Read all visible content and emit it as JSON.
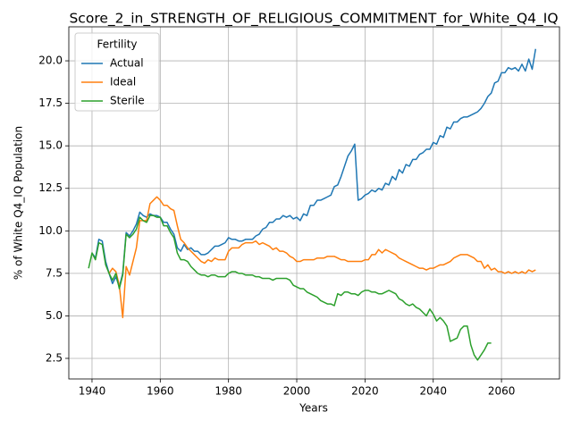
{
  "chart_data": {
    "type": "line",
    "title": "Score_2_in_STRENGTH_OF_RELIGIOUS_COMMITMENT_for_White_Q4_IQ",
    "xlabel": "Years",
    "ylabel": "% of White Q4_IQ Population",
    "legend_title": "Fertility",
    "legend": "upper left",
    "grid": true,
    "xlim": [
      1933.2,
      2077.0
    ],
    "ylim": [
      1.29,
      22.0
    ],
    "xticks": [
      1940,
      1960,
      1980,
      2000,
      2020,
      2040,
      2060
    ],
    "yticks": [
      2.5,
      {
        "value": 5,
        "label": "5.0"
      },
      7.5,
      {
        "value": 10,
        "label": "10.0"
      },
      12.5,
      {
        "value": 15,
        "label": "15.0"
      },
      17.5,
      {
        "value": 20,
        "label": "20.0"
      }
    ],
    "x": [
      1939,
      1940,
      1941,
      1942,
      1943,
      1944,
      1945,
      1946,
      1947,
      1948,
      1949,
      1950,
      1951,
      1952,
      1953,
      1954,
      1955,
      1956,
      1957,
      1958,
      1959,
      1960,
      1961,
      1962,
      1963,
      1964,
      1965,
      1966,
      1967,
      1968,
      1969,
      1970,
      1971,
      1972,
      1973,
      1974,
      1975,
      1976,
      1977,
      1978,
      1979,
      1980,
      1981,
      1982,
      1983,
      1984,
      1985,
      1986,
      1987,
      1988,
      1989,
      1990,
      1991,
      1992,
      1993,
      1994,
      1995,
      1996,
      1997,
      1998,
      1999,
      2000,
      2001,
      2002,
      2003,
      2004,
      2005,
      2006,
      2007,
      2008,
      2009,
      2010,
      2011,
      2012,
      2013,
      2014,
      2015,
      2016,
      2017,
      2018,
      2019,
      2020,
      2021,
      2022,
      2023,
      2024,
      2025,
      2026,
      2027,
      2028,
      2029,
      2030,
      2031,
      2032,
      2033,
      2034,
      2035,
      2036,
      2037,
      2038,
      2039,
      2040,
      2041,
      2042,
      2043,
      2044,
      2045,
      2046,
      2047,
      2048,
      2049,
      2050,
      2051,
      2052,
      2053,
      2054,
      2055,
      2056,
      2057,
      2058,
      2059,
      2060,
      2061,
      2062,
      2063,
      2064,
      2065,
      2066,
      2067,
      2068,
      2069,
      2070
    ],
    "series": [
      {
        "name": "Actual",
        "color": "#1f77b4",
        "values": [
          null,
          8.7,
          8.4,
          9.5,
          9.4,
          8.2,
          7.5,
          6.9,
          7.3,
          6.7,
          7.5,
          9.9,
          9.7,
          10.0,
          10.4,
          11.1,
          10.9,
          10.8,
          11.0,
          10.9,
          10.9,
          10.8,
          10.5,
          10.5,
          10.1,
          9.8,
          9.0,
          8.8,
          9.2,
          8.9,
          9.0,
          8.8,
          8.8,
          8.6,
          8.6,
          8.7,
          8.9,
          9.1,
          9.1,
          9.2,
          9.3,
          9.6,
          9.5,
          9.5,
          9.4,
          9.4,
          9.5,
          9.5,
          9.5,
          9.7,
          9.8,
          10.1,
          10.2,
          10.5,
          10.5,
          10.7,
          10.7,
          10.9,
          10.8,
          10.9,
          10.7,
          10.8,
          10.6,
          11.0,
          10.9,
          11.5,
          11.5,
          11.8,
          11.8,
          11.9,
          12.0,
          12.1,
          12.6,
          12.7,
          13.2,
          13.8,
          14.4,
          14.7,
          15.1,
          11.8,
          11.9,
          12.1,
          12.2,
          12.4,
          12.3,
          12.5,
          12.4,
          12.8,
          12.7,
          13.2,
          13.0,
          13.6,
          13.4,
          13.9,
          13.8,
          14.2,
          14.2,
          14.5,
          14.6,
          14.8,
          14.8,
          15.2,
          15.1,
          15.6,
          15.5,
          16.1,
          16.0,
          16.4,
          16.4,
          16.6,
          16.7,
          16.7,
          16.8,
          16.9,
          17.0,
          17.2,
          17.5,
          17.9,
          18.1,
          18.7,
          18.8,
          19.3,
          19.3,
          19.6,
          19.5,
          19.6,
          19.4,
          19.8,
          19.4,
          20.1,
          19.5,
          20.7
        ]
      },
      {
        "name": "Ideal",
        "color": "#ff7f0e",
        "values": [
          null,
          null,
          null,
          null,
          null,
          null,
          7.5,
          7.8,
          7.6,
          6.8,
          4.9,
          7.9,
          7.4,
          8.2,
          9.0,
          10.6,
          10.6,
          10.6,
          11.6,
          11.8,
          12.0,
          11.8,
          11.5,
          11.5,
          11.3,
          11.2,
          10.3,
          9.5,
          9.3,
          9.0,
          8.8,
          8.6,
          8.4,
          8.2,
          8.1,
          8.3,
          8.2,
          8.4,
          8.3,
          8.3,
          8.3,
          8.8,
          9.0,
          9.0,
          9.0,
          9.2,
          9.3,
          9.3,
          9.3,
          9.4,
          9.2,
          9.3,
          9.2,
          9.1,
          8.9,
          9.0,
          8.8,
          8.8,
          8.7,
          8.5,
          8.4,
          8.2,
          8.2,
          8.3,
          8.3,
          8.3,
          8.3,
          8.4,
          8.4,
          8.4,
          8.5,
          8.5,
          8.5,
          8.4,
          8.3,
          8.3,
          8.2,
          8.2,
          8.2,
          8.2,
          8.2,
          8.3,
          8.3,
          8.6,
          8.6,
          8.9,
          8.7,
          8.9,
          8.8,
          8.7,
          8.6,
          8.4,
          8.3,
          8.2,
          8.1,
          8.0,
          7.9,
          7.8,
          7.8,
          7.7,
          7.8,
          7.8,
          7.9,
          8.0,
          8.0,
          8.1,
          8.2,
          8.4,
          8.5,
          8.6,
          8.6,
          8.6,
          8.5,
          8.4,
          8.2,
          8.2,
          7.8,
          8.0,
          7.7,
          7.8,
          7.6,
          7.6,
          7.5,
          7.6,
          7.5,
          7.6,
          7.5,
          7.6,
          7.5,
          7.7,
          7.6,
          7.7
        ]
      },
      {
        "name": "Sterile",
        "color": "#2ca02c",
        "values": [
          7.8,
          8.7,
          8.3,
          9.3,
          9.2,
          8.0,
          7.5,
          7.1,
          7.5,
          6.6,
          7.4,
          9.8,
          9.6,
          9.8,
          10.1,
          10.8,
          10.6,
          10.5,
          10.9,
          10.9,
          10.8,
          10.8,
          10.3,
          10.3,
          9.9,
          9.6,
          8.7,
          8.3,
          8.3,
          8.2,
          7.9,
          7.7,
          7.5,
          7.4,
          7.4,
          7.3,
          7.4,
          7.4,
          7.3,
          7.3,
          7.3,
          7.5,
          7.6,
          7.6,
          7.5,
          7.5,
          7.4,
          7.4,
          7.4,
          7.3,
          7.3,
          7.2,
          7.2,
          7.2,
          7.1,
          7.2,
          7.2,
          7.2,
          7.2,
          7.1,
          6.8,
          6.7,
          6.6,
          6.6,
          6.4,
          6.3,
          6.2,
          6.1,
          5.9,
          5.8,
          5.7,
          5.7,
          5.6,
          6.3,
          6.2,
          6.4,
          6.4,
          6.3,
          6.3,
          6.2,
          6.4,
          6.5,
          6.5,
          6.4,
          6.4,
          6.3,
          6.3,
          6.4,
          6.5,
          6.4,
          6.3,
          6.0,
          5.9,
          5.7,
          5.6,
          5.7,
          5.5,
          5.4,
          5.2,
          5.0,
          5.4,
          5.1,
          4.7,
          4.9,
          4.7,
          4.4,
          3.5,
          3.6,
          3.7,
          4.2,
          4.4,
          4.4,
          3.3,
          2.7,
          2.4,
          2.7,
          3.0,
          3.4,
          3.4,
          null,
          null,
          null,
          null,
          null,
          null,
          null,
          null,
          null,
          null,
          null,
          null,
          null
        ]
      }
    ]
  }
}
